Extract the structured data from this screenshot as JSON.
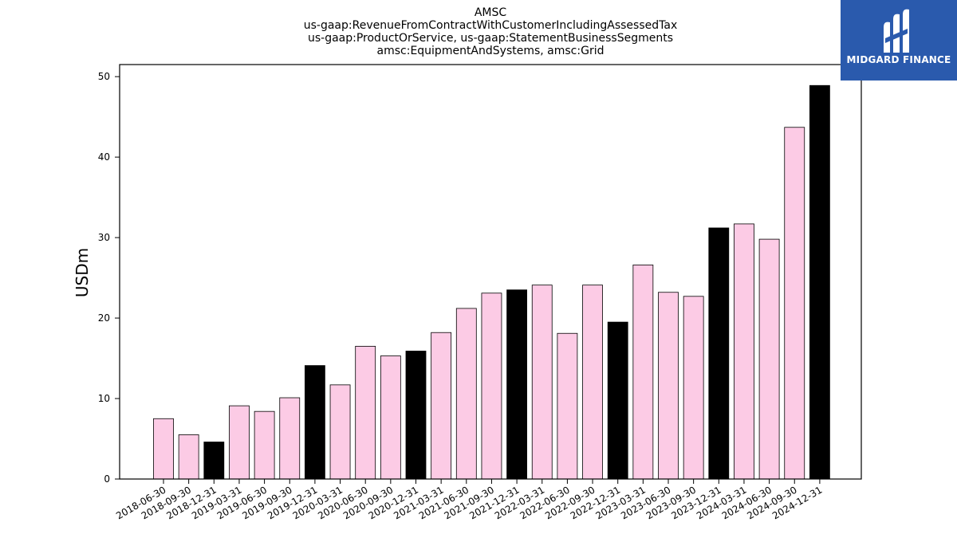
{
  "brand": {
    "name": "MIDGARD FINANCE",
    "icon": "midgard-logo-icon",
    "background": "#2a5aad"
  },
  "chart_data": {
    "type": "bar",
    "title_lines": [
      "AMSC",
      "us-gaap:RevenueFromContractWithCustomerIncludingAssessedTax",
      "us-gaap:ProductOrService, us-gaap:StatementBusinessSegments",
      "amsc:EquipmentAndSystems, amsc:Grid"
    ],
    "ylabel": "USDm",
    "xlabel": "",
    "ylim": [
      0,
      51.5
    ],
    "yticks": [
      0,
      10,
      20,
      30,
      40,
      50
    ],
    "grid": false,
    "colors": {
      "quarter": "#fccbe5",
      "year_end": "#000000",
      "edge": "#000000"
    },
    "categories": [
      "2018-06-30",
      "2018-09-30",
      "2018-12-31",
      "2019-03-31",
      "2019-06-30",
      "2019-09-30",
      "2019-12-31",
      "2020-03-31",
      "2020-06-30",
      "2020-09-30",
      "2020-12-31",
      "2021-03-31",
      "2021-06-30",
      "2021-09-30",
      "2021-12-31",
      "2022-03-31",
      "2022-06-30",
      "2022-09-30",
      "2022-12-31",
      "2023-03-31",
      "2023-06-30",
      "2023-09-30",
      "2023-12-31",
      "2024-03-31",
      "2024-06-30",
      "2024-09-30",
      "2024-12-31"
    ],
    "values": [
      7.5,
      5.5,
      4.6,
      9.1,
      8.4,
      10.1,
      14.1,
      11.7,
      16.5,
      15.3,
      15.9,
      18.2,
      21.2,
      23.1,
      23.5,
      24.1,
      18.1,
      24.1,
      19.5,
      26.6,
      23.2,
      22.7,
      31.2,
      31.7,
      29.8,
      43.7,
      48.9
    ]
  }
}
